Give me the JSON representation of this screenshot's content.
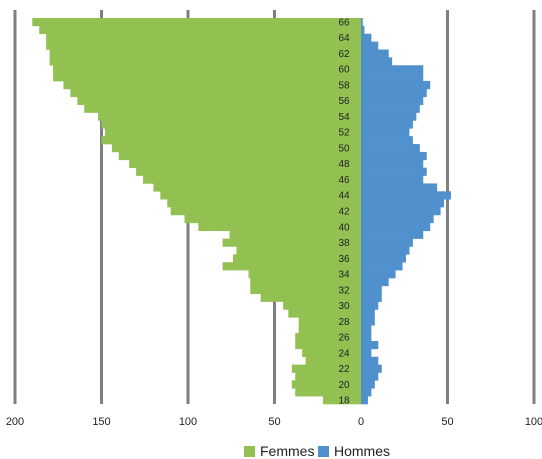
{
  "chart_data": {
    "type": "bar",
    "orientation": "horizontal-pyramid",
    "title": "",
    "xlabel": "",
    "ylabel": "",
    "ages": [
      18,
      19,
      20,
      21,
      22,
      23,
      24,
      25,
      26,
      27,
      28,
      29,
      30,
      31,
      32,
      33,
      34,
      35,
      36,
      37,
      38,
      39,
      40,
      41,
      42,
      43,
      44,
      45,
      46,
      47,
      48,
      49,
      50,
      51,
      52,
      53,
      54,
      55,
      56,
      57,
      58,
      59,
      60,
      61,
      62,
      63,
      64,
      65,
      66
    ],
    "age_tick_labels": [
      "18",
      "20",
      "22",
      "24",
      "26",
      "28",
      "30",
      "32",
      "34",
      "36",
      "38",
      "40",
      "42",
      "44",
      "46",
      "48",
      "50",
      "52",
      "54",
      "56",
      "58",
      "60",
      "62",
      "64",
      "66"
    ],
    "x_tick_labels": [
      "200",
      "150",
      "100",
      "50",
      "0",
      "50",
      "100"
    ],
    "xlim": [
      -200,
      100
    ],
    "grid": true,
    "legend_position": "bottom",
    "series": [
      {
        "name": "Femmes",
        "color": "#92c152",
        "values": [
          22,
          38,
          40,
          38,
          40,
          32,
          34,
          38,
          38,
          36,
          36,
          42,
          45,
          58,
          64,
          64,
          65,
          80,
          74,
          72,
          80,
          76,
          94,
          102,
          110,
          112,
          116,
          120,
          126,
          130,
          134,
          140,
          144,
          150,
          148,
          150,
          152,
          160,
          164,
          168,
          172,
          178,
          178,
          180,
          180,
          182,
          182,
          186,
          190
        ]
      },
      {
        "name": "Hommes",
        "color": "#4f90cd",
        "values": [
          4,
          6,
          8,
          10,
          12,
          10,
          6,
          10,
          6,
          6,
          8,
          8,
          10,
          12,
          12,
          16,
          20,
          24,
          26,
          28,
          30,
          36,
          40,
          42,
          46,
          48,
          52,
          44,
          36,
          38,
          36,
          38,
          34,
          30,
          28,
          30,
          32,
          34,
          36,
          38,
          40,
          36,
          36,
          18,
          16,
          10,
          6,
          2,
          1
        ]
      }
    ],
    "legend": [
      {
        "name": "Femmes",
        "color": "#92c152"
      },
      {
        "name": "Hommes",
        "color": "#4f90cd"
      }
    ]
  }
}
